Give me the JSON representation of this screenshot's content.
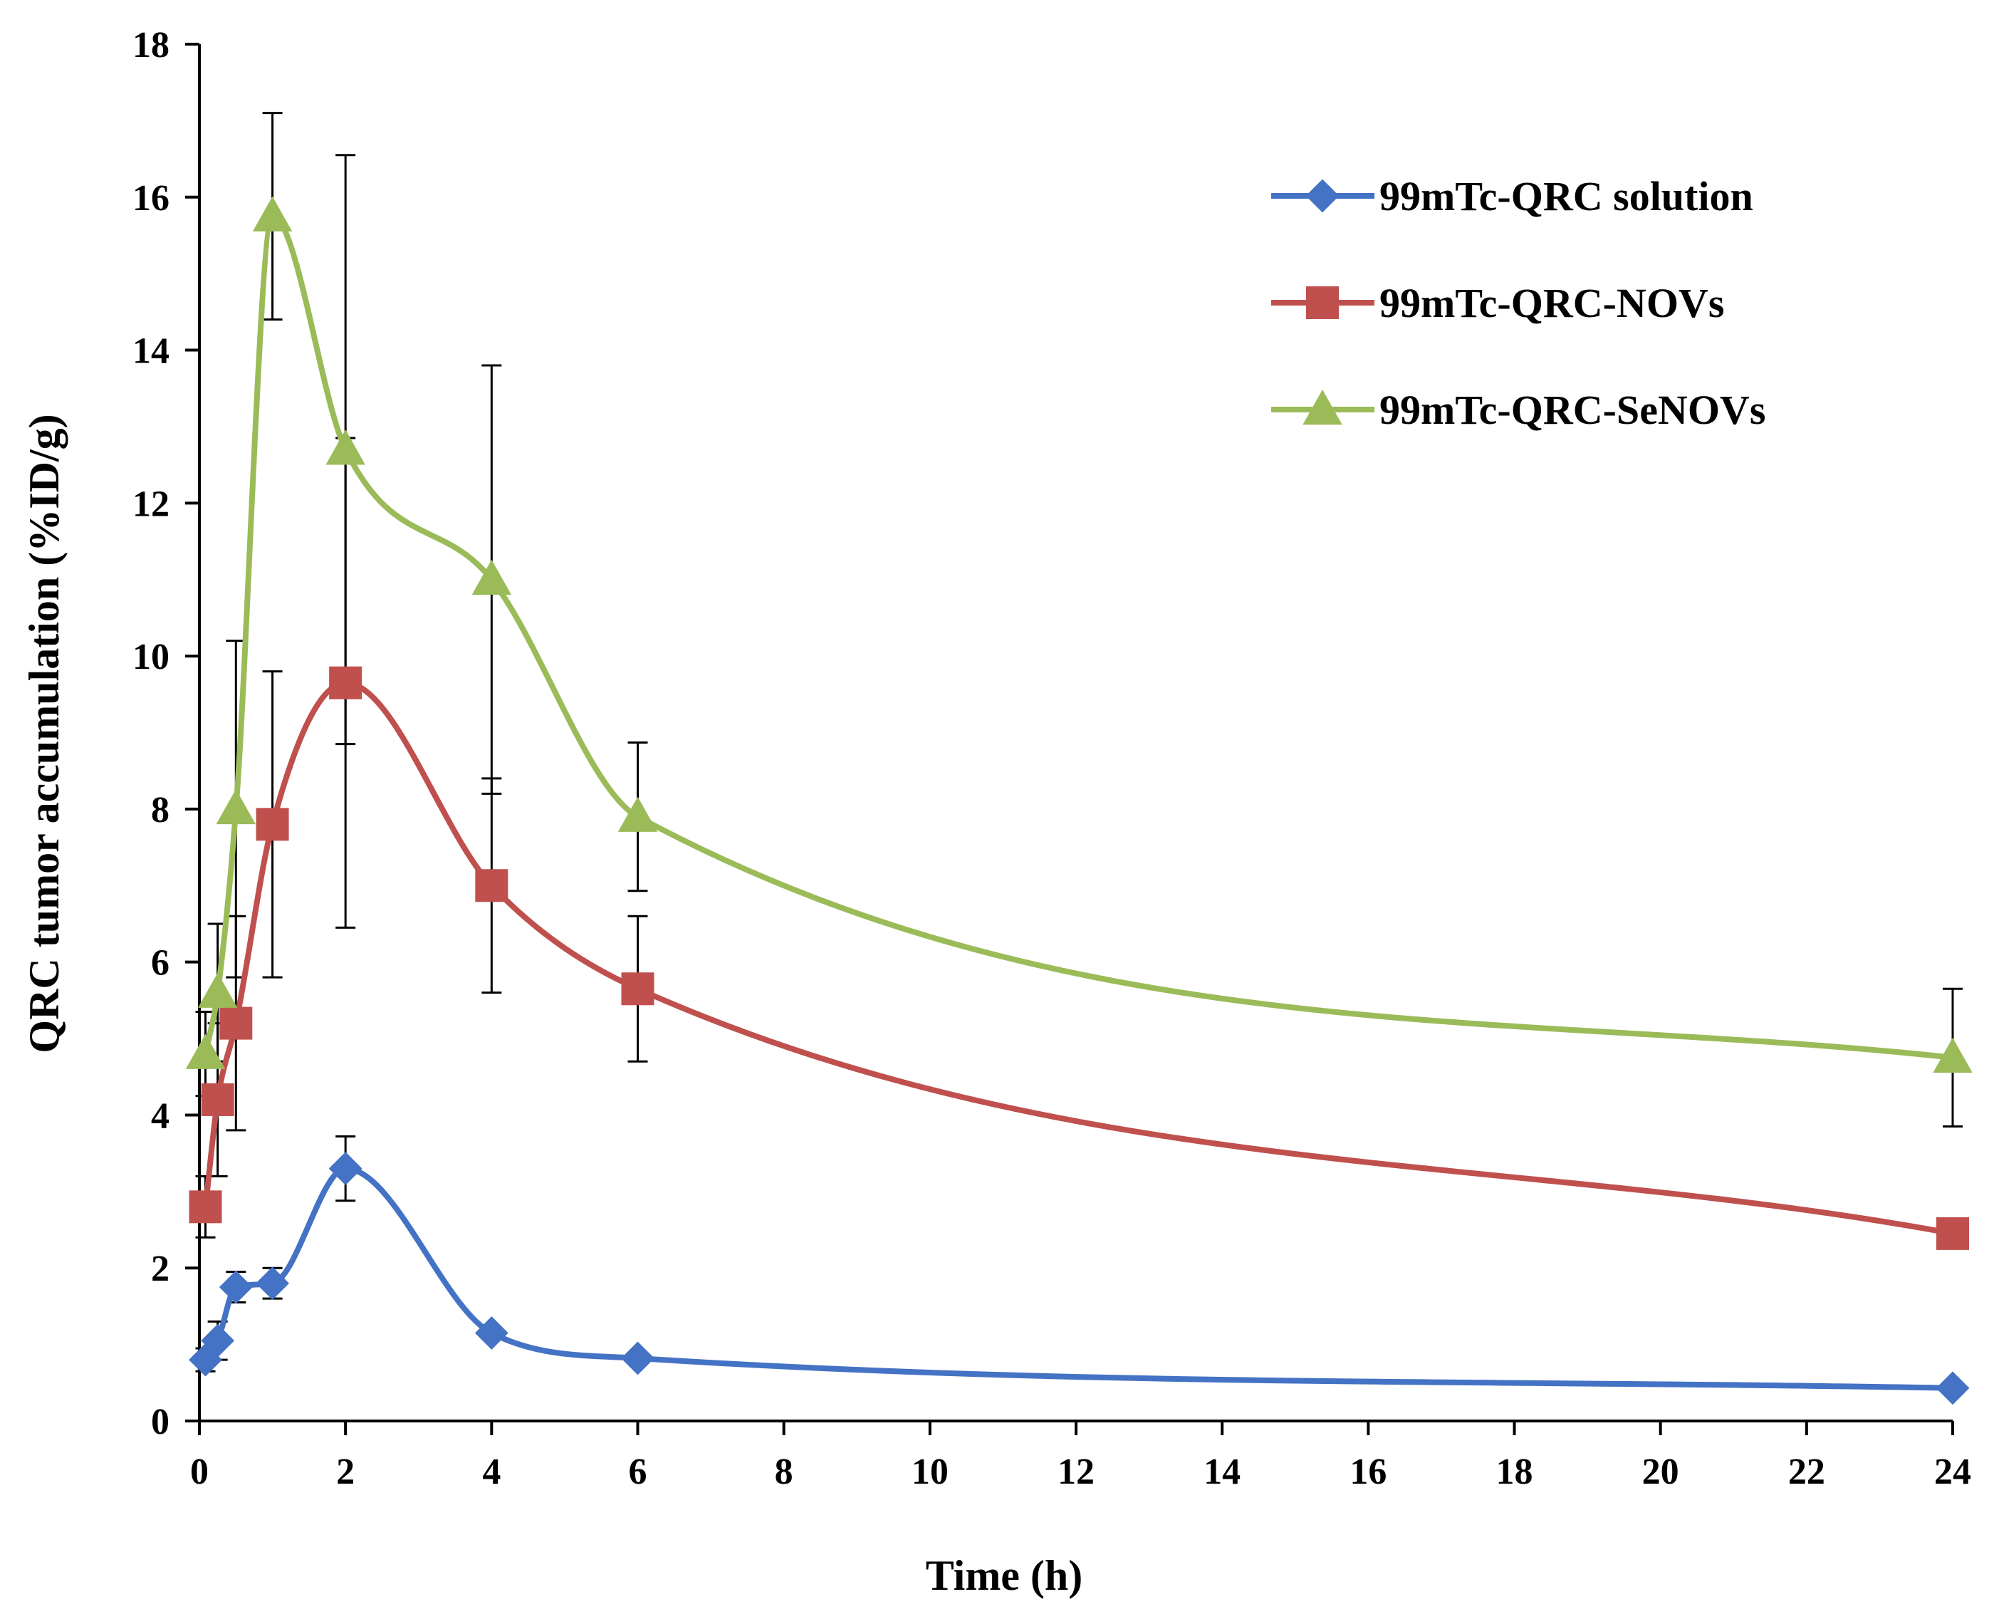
{
  "chart_data": {
    "type": "line",
    "title": "",
    "xlabel": "Time (h)",
    "ylabel": "QRC tumor accumulation (%ID/g)",
    "xlim": [
      0,
      24
    ],
    "ylim": [
      0,
      18
    ],
    "xticks": [
      0,
      2,
      4,
      6,
      8,
      10,
      12,
      14,
      16,
      18,
      20,
      22,
      24
    ],
    "yticks": [
      0,
      2,
      4,
      6,
      8,
      10,
      12,
      14,
      16,
      18
    ],
    "grid": false,
    "legend_position": "top-right",
    "series": [
      {
        "name": "99mTc-QRC solution",
        "color": "#4472C4",
        "marker": "diamond",
        "x": [
          0.083,
          0.25,
          0.5,
          1,
          2,
          4,
          6,
          24
        ],
        "y": [
          0.8,
          1.05,
          1.75,
          1.8,
          3.3,
          1.15,
          0.82,
          0.43
        ],
        "error": [
          0.15,
          0.25,
          0.2,
          0.2,
          0.42,
          0.0,
          0.0,
          0.0
        ]
      },
      {
        "name": "99mTc-QRC-NOVs",
        "color": "#C0504D",
        "marker": "square",
        "x": [
          0.083,
          0.25,
          0.5,
          1,
          2,
          4,
          6,
          24
        ],
        "y": [
          2.8,
          4.2,
          5.2,
          7.8,
          9.65,
          7.0,
          5.65,
          2.45
        ],
        "error": [
          0.4,
          1.0,
          1.4,
          2.0,
          3.2,
          1.4,
          0.95,
          0.0
        ]
      },
      {
        "name": "99mTc-QRC-SeNOVs",
        "color": "#9BBB59",
        "marker": "triangle",
        "x": [
          0.083,
          0.25,
          0.5,
          1,
          2,
          4,
          6,
          24
        ],
        "y": [
          4.8,
          5.6,
          8.0,
          15.75,
          12.7,
          11.0,
          7.9,
          4.75
        ],
        "error": [
          0.55,
          0.9,
          2.2,
          1.35,
          3.85,
          2.8,
          0.97,
          0.9
        ]
      }
    ]
  }
}
